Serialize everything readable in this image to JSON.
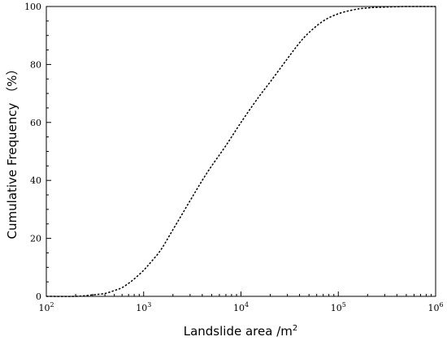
{
  "chart_data": {
    "type": "line",
    "xscale": "log",
    "xlim": [
      100,
      1000000
    ],
    "ylim": [
      0,
      100
    ],
    "grid": false,
    "xlabel": "Landslide area /m",
    "xlabel_superscript": "2",
    "ylabel": "Cumulative Frequency （%）",
    "x_ticks": [
      {
        "base": "10",
        "exp": "2"
      },
      {
        "base": "10",
        "exp": "3"
      },
      {
        "base": "10",
        "exp": "4"
      },
      {
        "base": "10",
        "exp": "5"
      },
      {
        "base": "10",
        "exp": "6"
      }
    ],
    "x_tick_values": [
      100,
      1000,
      10000,
      100000,
      1000000
    ],
    "y_ticks": [
      "0",
      "20",
      "40",
      "60",
      "80",
      "100"
    ],
    "y_tick_values": [
      0,
      20,
      40,
      60,
      80,
      100
    ],
    "series": [
      {
        "line_style": "dotted",
        "color": "#000000",
        "x": [
          100,
          200,
          300,
          400,
          500,
          600,
          700,
          800,
          1000,
          1200,
          1500,
          2000,
          3000,
          4000,
          5000,
          7000,
          10000,
          15000,
          20000,
          30000,
          40000,
          50000,
          70000,
          100000,
          150000,
          200000,
          300000,
          500000,
          1000000
        ],
        "y": [
          0,
          0,
          0.5,
          1,
          2,
          3,
          4.5,
          6,
          9,
          12,
          16,
          23,
          33,
          40,
          45,
          52,
          60,
          68.5,
          74,
          82,
          87.5,
          91,
          95,
          97.5,
          99,
          99.5,
          99.8,
          100,
          100
        ]
      }
    ]
  }
}
